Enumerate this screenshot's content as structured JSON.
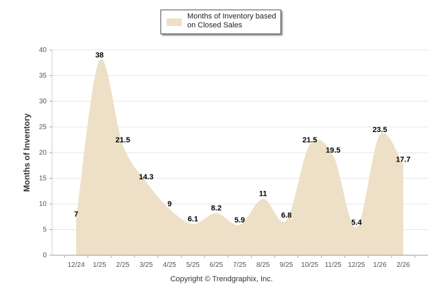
{
  "chart_data": {
    "type": "area",
    "categories": [
      "12/24",
      "1/25",
      "2/25",
      "3/25",
      "4/25",
      "5/25",
      "6/25",
      "7/25",
      "8/25",
      "9/25",
      "10/25",
      "11/25",
      "12/25",
      "1/26",
      "2/26"
    ],
    "series": [
      {
        "name": "Months of Inventory based on Closed Sales",
        "values": [
          7,
          38,
          21.5,
          14.3,
          9,
          6.1,
          8.2,
          5.9,
          11,
          6.8,
          21.5,
          19.5,
          5.4,
          23.5,
          17.7
        ]
      }
    ],
    "data_labels": [
      "7",
      "38",
      "21.5",
      "14.3",
      "9",
      "6.1",
      "8.2",
      "5.9",
      "11",
      "6.8",
      "21.5",
      "19.5",
      "5.4",
      "23.5",
      "17.7"
    ],
    "ylabel": "Months of Inventory",
    "xlabel": "",
    "ylim": [
      0,
      40
    ],
    "yticks": [
      0,
      5,
      10,
      15,
      20,
      25,
      30,
      35,
      40
    ],
    "grid": true,
    "legend": "top-center",
    "fill_color": "#ede0c6"
  },
  "footer": {
    "copyright": "Copyright © Trendgraphix, Inc."
  }
}
